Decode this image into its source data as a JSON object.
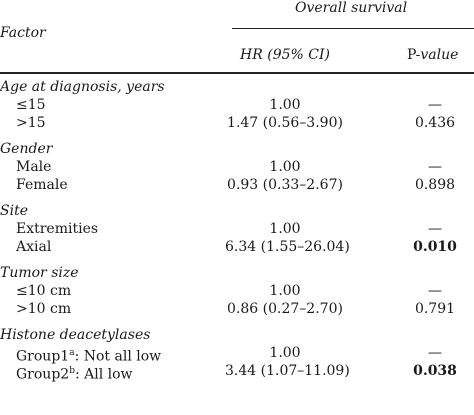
{
  "header": {
    "factor": "Factor",
    "group": "Overall survival",
    "col_hr": "HR (95% CI)",
    "col_p_prefix": "P-",
    "col_p_suffix": "value"
  },
  "sections": [
    {
      "title": "Age at diagnosis, years",
      "rows": [
        {
          "label": "≤15",
          "hr": "1.00",
          "p": "—",
          "bold": false
        },
        {
          "label": ">15",
          "hr": "1.47 (0.56–3.90)",
          "p": "0.436",
          "bold": false
        }
      ]
    },
    {
      "title": "Gender",
      "rows": [
        {
          "label": "Male",
          "hr": "1.00",
          "p": "—",
          "bold": false
        },
        {
          "label": "Female",
          "hr": "0.93 (0.33–2.67)",
          "p": "0.898",
          "bold": false
        }
      ]
    },
    {
      "title": "Site",
      "rows": [
        {
          "label": "Extremities",
          "hr": "1.00",
          "p": "—",
          "bold": false
        },
        {
          "label": "Axial",
          "hr": "6.34 (1.55–26.04)",
          "p": "0.010",
          "bold": true
        }
      ]
    },
    {
      "title": "Tumor size",
      "rows": [
        {
          "label": "≤10 cm",
          "hr": "1.00",
          "p": "—",
          "bold": false
        },
        {
          "label": ">10 cm",
          "hr": "0.86 (0.27–2.70)",
          "p": "0.791",
          "bold": false
        }
      ]
    },
    {
      "title": "Histone deacetylases",
      "rows": [
        {
          "label": "Group1",
          "sup": "a",
          "label_rest": ": Not all low",
          "hr": "1.00",
          "p": "—",
          "bold": false
        },
        {
          "label": "Group2",
          "sup": "b",
          "label_rest": ": All low",
          "hr": "3.44 (1.07–11.09)",
          "p": "0.038",
          "bold": true
        }
      ]
    }
  ]
}
